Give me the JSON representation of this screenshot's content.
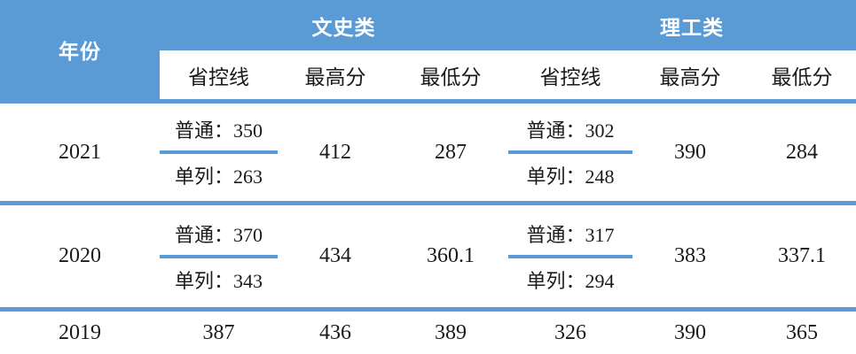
{
  "colors": {
    "header_blue": "#5b9bd5",
    "divider_blue": "#5b9bd5",
    "header_text": "#ffffff",
    "body_text": "#1a1a1a"
  },
  "table": {
    "year_header": "年份",
    "group_headers": [
      "文史类",
      "理工类"
    ],
    "sub_headers": [
      "省控线",
      "最高分",
      "最低分",
      "省控线",
      "最高分",
      "最低分"
    ],
    "rows": [
      {
        "year": "2021",
        "wenshi": {
          "shengkongxian": {
            "putong": "普通：350",
            "danlie": "单列：263"
          },
          "zuigaofen": "412",
          "zuidifen": "287"
        },
        "ligong": {
          "shengkongxian": {
            "putong": "普通：302",
            "danlie": "单列：248"
          },
          "zuigaofen": "390",
          "zuidifen": "284"
        }
      },
      {
        "year": "2020",
        "wenshi": {
          "shengkongxian": {
            "putong": "普通：370",
            "danlie": "单列：343"
          },
          "zuigaofen": "434",
          "zuidifen": "360.1"
        },
        "ligong": {
          "shengkongxian": {
            "putong": "普通：317",
            "danlie": "单列：294"
          },
          "zuigaofen": "383",
          "zuidifen": "337.1"
        }
      },
      {
        "year": "2019",
        "wenshi": {
          "shengkongxian": "387",
          "zuigaofen": "436",
          "zuidifen": "389"
        },
        "ligong": {
          "shengkongxian": "326",
          "zuigaofen": "390",
          "zuidifen": "365"
        }
      }
    ]
  }
}
